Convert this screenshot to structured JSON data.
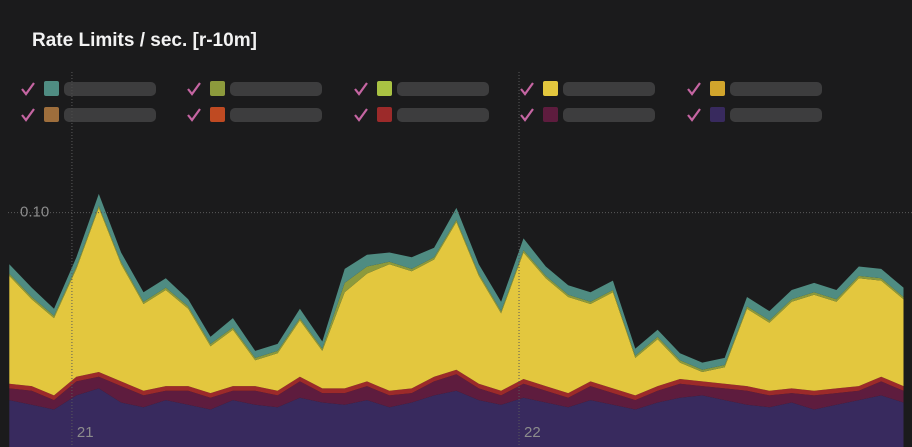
{
  "chart_data": {
    "type": "stacked-area",
    "title": "Rate Limits / sec. [r-10m]",
    "xlim": [
      20.857,
      22.879
    ],
    "xticks": [
      21,
      22
    ],
    "ylim": [
      0,
      0.16
    ],
    "yticks": [
      {
        "value": 0.1,
        "label": "0.10"
      }
    ],
    "grid": true,
    "legend": "top",
    "x": [
      20.86,
      20.91,
      20.96,
      21.01,
      21.06,
      21.11,
      21.16,
      21.21,
      21.26,
      21.31,
      21.36,
      21.41,
      21.46,
      21.51,
      21.56,
      21.61,
      21.66,
      21.71,
      21.76,
      21.81,
      21.86,
      21.91,
      21.96,
      22.01,
      22.06,
      22.11,
      22.16,
      22.21,
      22.26,
      22.31,
      22.36,
      22.41,
      22.46,
      22.51,
      22.56,
      22.61,
      22.66,
      22.71,
      22.76,
      22.81,
      22.86
    ],
    "series": [
      {
        "color": "#4f8c82",
        "values": [
          0.004,
          0.004,
          0.003,
          0.004,
          0.005,
          0.004,
          0.004,
          0.004,
          0.003,
          0.003,
          0.004,
          0.003,
          0.003,
          0.004,
          0.003,
          0.006,
          0.005,
          0.004,
          0.005,
          0.004,
          0.005,
          0.004,
          0.004,
          0.005,
          0.004,
          0.004,
          0.004,
          0.004,
          0.003,
          0.003,
          0.003,
          0.003,
          0.003,
          0.004,
          0.004,
          0.004,
          0.004,
          0.004,
          0.004,
          0.004,
          0.004
        ]
      },
      {
        "color": "#8c9a3c",
        "values": [
          0.001,
          0.001,
          0.001,
          0.001,
          0.001,
          0.001,
          0.001,
          0.001,
          0.001,
          0.001,
          0.001,
          0.001,
          0.001,
          0.001,
          0.001,
          0.004,
          0.003,
          0.001,
          0.001,
          0.001,
          0.001,
          0.001,
          0.001,
          0.001,
          0.001,
          0.001,
          0.001,
          0.001,
          0.001,
          0.001,
          0.001,
          0.001,
          0.001,
          0.001,
          0.001,
          0.001,
          0.001,
          0.001,
          0.001,
          0.001,
          0.001
        ]
      },
      {
        "color": "#a9c243",
        "values": [
          0,
          0,
          0,
          0,
          0,
          0,
          0,
          0,
          0,
          0,
          0,
          0,
          0,
          0,
          0,
          0,
          0,
          0,
          0,
          0,
          0,
          0,
          0,
          0,
          0,
          0,
          0,
          0,
          0,
          0,
          0,
          0,
          0,
          0,
          0,
          0,
          0,
          0,
          0,
          0,
          0
        ]
      },
      {
        "color": "#e3c73e",
        "values": [
          0.046,
          0.037,
          0.033,
          0.046,
          0.07,
          0.05,
          0.037,
          0.041,
          0.033,
          0.02,
          0.024,
          0.011,
          0.016,
          0.024,
          0.016,
          0.041,
          0.046,
          0.054,
          0.05,
          0.05,
          0.063,
          0.046,
          0.033,
          0.054,
          0.046,
          0.041,
          0.033,
          0.041,
          0.016,
          0.02,
          0.007,
          0.004,
          0.007,
          0.033,
          0.029,
          0.037,
          0.041,
          0.037,
          0.046,
          0.041,
          0.037
        ]
      },
      {
        "color": "#d1a52c",
        "values": [
          0,
          0,
          0,
          0,
          0,
          0,
          0,
          0,
          0,
          0,
          0,
          0,
          0,
          0,
          0,
          0,
          0,
          0,
          0,
          0,
          0,
          0,
          0,
          0,
          0,
          0,
          0,
          0,
          0,
          0,
          0,
          0,
          0,
          0,
          0,
          0,
          0,
          0,
          0,
          0,
          0
        ]
      },
      {
        "color": "#9e6e3c",
        "values": [
          0,
          0,
          0,
          0,
          0,
          0,
          0,
          0,
          0,
          0,
          0,
          0,
          0,
          0,
          0,
          0,
          0,
          0,
          0,
          0,
          0,
          0,
          0,
          0,
          0,
          0,
          0,
          0,
          0,
          0,
          0,
          0,
          0,
          0,
          0,
          0,
          0,
          0,
          0,
          0,
          0
        ]
      },
      {
        "color": "#bf4a22",
        "values": [
          0,
          0,
          0,
          0,
          0,
          0,
          0,
          0,
          0,
          0,
          0,
          0,
          0,
          0,
          0,
          0,
          0,
          0,
          0,
          0,
          0,
          0,
          0,
          0,
          0,
          0,
          0,
          0,
          0,
          0,
          0,
          0,
          0,
          0,
          0,
          0,
          0,
          0,
          0,
          0,
          0
        ]
      },
      {
        "color": "#9c2a2a",
        "values": [
          0.002,
          0.002,
          0.002,
          0.002,
          0.002,
          0.002,
          0.002,
          0.002,
          0.002,
          0.002,
          0.002,
          0.002,
          0.002,
          0.002,
          0.002,
          0.002,
          0.002,
          0.002,
          0.002,
          0.002,
          0.002,
          0.002,
          0.002,
          0.002,
          0.002,
          0.002,
          0.002,
          0.002,
          0.002,
          0.002,
          0.002,
          0.002,
          0.002,
          0.002,
          0.002,
          0.002,
          0.002,
          0.002,
          0.002,
          0.002,
          0.002
        ]
      },
      {
        "color": "#5e1c3e",
        "values": [
          0.005,
          0.006,
          0.004,
          0.006,
          0.005,
          0.007,
          0.005,
          0.004,
          0.006,
          0.005,
          0.004,
          0.006,
          0.005,
          0.007,
          0.004,
          0.005,
          0.006,
          0.005,
          0.004,
          0.006,
          0.007,
          0.005,
          0.004,
          0.006,
          0.005,
          0.004,
          0.006,
          0.005,
          0.004,
          0.005,
          0.006,
          0.004,
          0.005,
          0.006,
          0.005,
          0.004,
          0.006,
          0.005,
          0.004,
          0.006,
          0.005
        ]
      },
      {
        "color": "#382a5e",
        "values": [
          0.02,
          0.018,
          0.016,
          0.022,
          0.025,
          0.019,
          0.017,
          0.02,
          0.018,
          0.016,
          0.02,
          0.018,
          0.017,
          0.021,
          0.019,
          0.018,
          0.02,
          0.017,
          0.019,
          0.022,
          0.024,
          0.02,
          0.018,
          0.021,
          0.019,
          0.017,
          0.02,
          0.018,
          0.016,
          0.019,
          0.021,
          0.022,
          0.02,
          0.018,
          0.017,
          0.019,
          0.016,
          0.018,
          0.02,
          0.022,
          0.019
        ]
      }
    ]
  }
}
